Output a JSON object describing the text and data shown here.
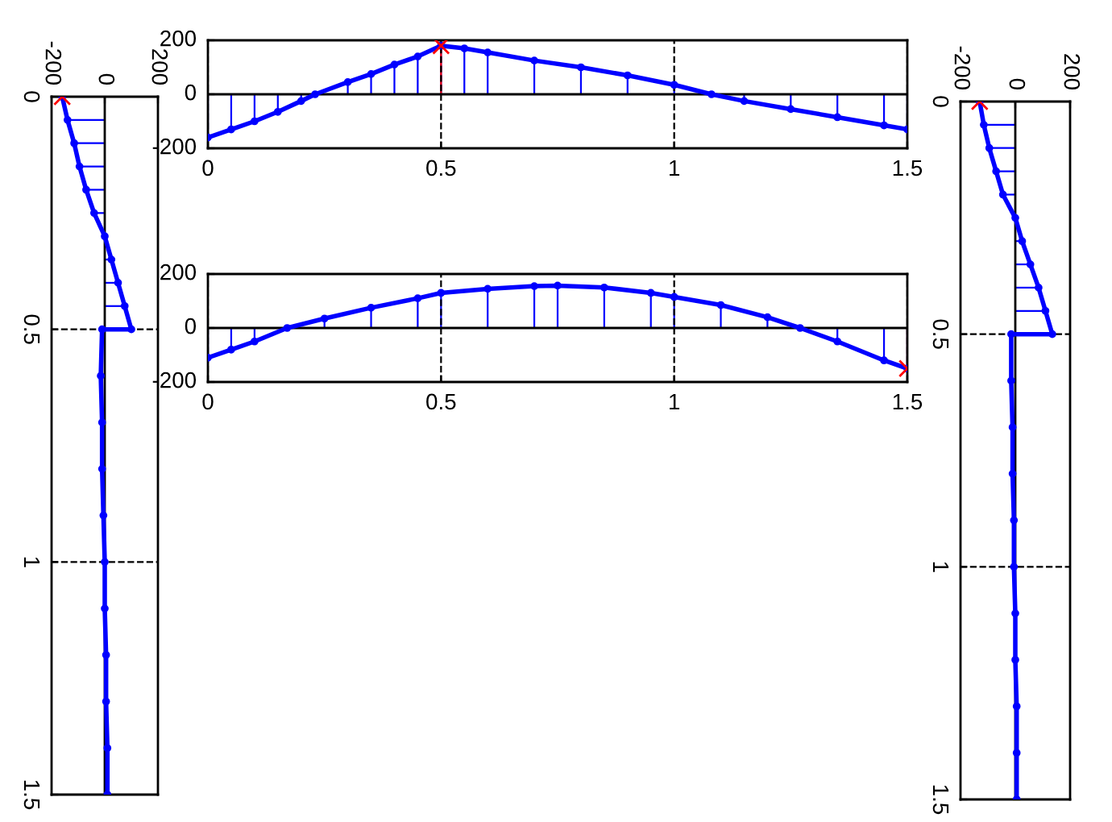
{
  "chart_data": [
    {
      "type": "lollipop",
      "orientation": "horizontal",
      "xlim": [
        -200,
        200
      ],
      "xticks": [
        -200,
        0,
        200
      ],
      "ylim": [
        1.5,
        0
      ],
      "yticks": [
        0,
        0.5,
        1,
        1.5
      ],
      "grid": "y",
      "series": [
        {
          "type": "line",
          "color": "#0000ff",
          "line_style": "solid",
          "marker": "none",
          "x": [
            0,
            0.05,
            0.1,
            0.15,
            0.2,
            0.25,
            0.3,
            0.35,
            0.4,
            0.45,
            0.5,
            0.5,
            0.6,
            0.7,
            0.8,
            0.9,
            1.0,
            1.1,
            1.2,
            1.3,
            1.4,
            1.5
          ],
          "values": [
            -160,
            -140,
            -115,
            -95,
            -70,
            -40,
            0,
            25,
            50,
            75,
            100,
            -10,
            -15,
            -10,
            -10,
            -5,
            0,
            0,
            5,
            5,
            10,
            10
          ]
        },
        {
          "color": "#0000ff",
          "marker": "circle",
          "x": [
            0,
            0.05,
            0.1,
            0.15,
            0.2,
            0.25,
            0.3,
            0.35,
            0.4,
            0.45,
            0.5,
            0.5,
            0.6,
            0.7,
            0.8,
            0.9,
            1.0,
            1.1,
            1.2,
            1.3,
            1.4,
            1.5
          ],
          "values": [
            -160,
            -140,
            -115,
            -95,
            -70,
            -40,
            0,
            25,
            50,
            75,
            100,
            -10,
            -15,
            -10,
            -10,
            -5,
            0,
            0,
            5,
            5,
            10,
            10
          ]
        },
        {
          "color": "#ff0000",
          "marker": "cross",
          "x": [
            0
          ],
          "values": [
            -160
          ]
        }
      ]
    },
    {
      "type": "lollipop",
      "xlim": [
        0,
        1.5
      ],
      "xticks": [
        0,
        0.5,
        1,
        1.5
      ],
      "ylim": [
        -200,
        200
      ],
      "yticks": [
        -200,
        0,
        200
      ],
      "grid": "x",
      "series": [
        {
          "type": "line",
          "color": "#0000ff",
          "line_style": "solid",
          "marker": "none",
          "x": [
            0,
            0.05,
            0.1,
            0.15,
            0.2,
            0.23,
            0.3,
            0.35,
            0.4,
            0.45,
            0.5,
            0.55,
            0.6,
            0.7,
            0.8,
            0.9,
            1.0,
            1.08,
            1.15,
            1.25,
            1.35,
            1.45,
            1.5
          ],
          "values": [
            -160,
            -130,
            -100,
            -65,
            -25,
            0,
            45,
            75,
            110,
            140,
            180,
            170,
            155,
            125,
            100,
            70,
            35,
            0,
            -25,
            -55,
            -85,
            -115,
            -130
          ]
        },
        {
          "color": "#0000ff",
          "marker": "circle",
          "x": [
            0,
            0.05,
            0.1,
            0.15,
            0.2,
            0.23,
            0.3,
            0.35,
            0.4,
            0.45,
            0.5,
            0.55,
            0.6,
            0.7,
            0.8,
            0.9,
            1.0,
            1.08,
            1.15,
            1.25,
            1.35,
            1.45,
            1.5
          ],
          "values": [
            -160,
            -130,
            -100,
            -65,
            -25,
            0,
            45,
            75,
            110,
            140,
            180,
            170,
            155,
            125,
            100,
            70,
            35,
            0,
            -25,
            -55,
            -85,
            -115,
            -130
          ]
        },
        {
          "color": "#ff0000",
          "marker": "cross",
          "x": [
            0.5
          ],
          "values": [
            180
          ]
        }
      ]
    },
    {
      "type": "lollipop",
      "xlim": [
        0,
        1.5
      ],
      "xticks": [
        0,
        0.5,
        1,
        1.5
      ],
      "ylim": [
        -200,
        200
      ],
      "yticks": [
        -200,
        0,
        200
      ],
      "grid": "x",
      "series": [
        {
          "type": "line",
          "color": "#0000ff",
          "line_style": "solid",
          "marker": "none",
          "x": [
            0,
            0.05,
            0.1,
            0.17,
            0.25,
            0.35,
            0.45,
            0.5,
            0.6,
            0.7,
            0.75,
            0.85,
            0.95,
            1.0,
            1.1,
            1.2,
            1.27,
            1.35,
            1.45,
            1.5
          ],
          "values": [
            -110,
            -80,
            -50,
            0,
            35,
            75,
            110,
            130,
            145,
            155,
            157,
            150,
            130,
            115,
            85,
            40,
            0,
            -50,
            -120,
            -150
          ]
        },
        {
          "color": "#0000ff",
          "marker": "circle",
          "x": [
            0,
            0.05,
            0.1,
            0.17,
            0.25,
            0.35,
            0.45,
            0.5,
            0.6,
            0.7,
            0.75,
            0.85,
            0.95,
            1.0,
            1.1,
            1.2,
            1.27,
            1.35,
            1.45,
            1.5
          ],
          "values": [
            -110,
            -80,
            -50,
            0,
            35,
            75,
            110,
            130,
            145,
            155,
            157,
            150,
            130,
            115,
            85,
            40,
            0,
            -50,
            -120,
            -150
          ]
        },
        {
          "color": "#ff0000",
          "marker": "cross",
          "x": [
            1.5
          ],
          "values": [
            -150
          ]
        }
      ]
    },
    {
      "type": "lollipop",
      "orientation": "horizontal",
      "xlim": [
        -200,
        200
      ],
      "xticks": [
        -200,
        0,
        200
      ],
      "ylim": [
        1.5,
        0
      ],
      "yticks": [
        0,
        0.5,
        1,
        1.5
      ],
      "grid": "y",
      "series": [
        {
          "type": "line",
          "color": "#0000ff",
          "line_style": "solid",
          "marker": "none",
          "x": [
            0,
            0.05,
            0.1,
            0.15,
            0.2,
            0.25,
            0.3,
            0.35,
            0.4,
            0.45,
            0.5,
            0.5,
            0.6,
            0.7,
            0.8,
            0.9,
            1.0,
            1.1,
            1.2,
            1.3,
            1.4,
            1.5
          ],
          "values": [
            -130,
            -115,
            -95,
            -70,
            -45,
            0,
            25,
            55,
            85,
            110,
            135,
            -15,
            -15,
            -10,
            -10,
            -5,
            -5,
            0,
            0,
            5,
            5,
            5
          ]
        },
        {
          "color": "#0000ff",
          "marker": "circle",
          "x": [
            0,
            0.05,
            0.1,
            0.15,
            0.2,
            0.25,
            0.3,
            0.35,
            0.4,
            0.45,
            0.5,
            0.5,
            0.6,
            0.7,
            0.8,
            0.9,
            1.0,
            1.1,
            1.2,
            1.3,
            1.4,
            1.5
          ],
          "values": [
            -130,
            -115,
            -95,
            -70,
            -45,
            0,
            25,
            55,
            85,
            110,
            135,
            -15,
            -15,
            -10,
            -10,
            -5,
            -5,
            0,
            0,
            5,
            5,
            5
          ]
        },
        {
          "color": "#ff0000",
          "marker": "cross",
          "x": [
            0
          ],
          "values": [
            -130
          ]
        }
      ]
    }
  ]
}
